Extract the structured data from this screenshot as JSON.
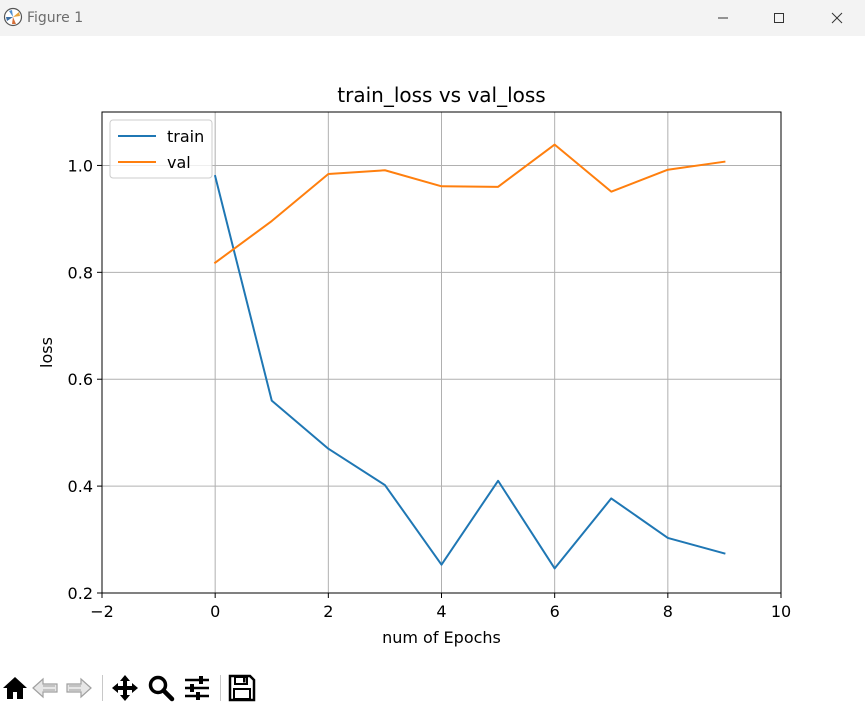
{
  "window": {
    "title": "Figure 1"
  },
  "toolbar": {
    "buttons": [
      {
        "name": "home-button",
        "icon": "home-icon"
      },
      {
        "name": "back-button",
        "icon": "back-arrow-icon"
      },
      {
        "name": "forward-button",
        "icon": "forward-arrow-icon"
      },
      {
        "name": "pan-button",
        "icon": "move-icon"
      },
      {
        "name": "zoom-button",
        "icon": "magnifier-icon"
      },
      {
        "name": "configure-subplots-button",
        "icon": "sliders-icon"
      },
      {
        "name": "save-button",
        "icon": "floppy-disk-icon"
      }
    ]
  },
  "colors": {
    "train": "#1f77b4",
    "val": "#ff7f0e",
    "grid": "#b0b0b0"
  },
  "chart_data": {
    "type": "line",
    "title": "train_loss vs val_loss",
    "xlabel": "num of Epochs",
    "ylabel": "loss",
    "xlim": [
      -2,
      10
    ],
    "ylim": [
      0.2,
      1.1
    ],
    "xticks": [
      -2,
      0,
      2,
      4,
      6,
      8,
      10
    ],
    "xtick_labels": [
      "−2",
      "0",
      "2",
      "4",
      "6",
      "8",
      "10"
    ],
    "yticks": [
      0.2,
      0.4,
      0.6,
      0.8,
      1.0
    ],
    "ytick_labels": [
      "0.2",
      "0.4",
      "0.6",
      "0.8",
      "1.0"
    ],
    "grid": true,
    "legend_position": "top-left",
    "x": [
      0,
      1,
      2,
      3,
      4,
      5,
      6,
      7,
      8,
      9
    ],
    "series": [
      {
        "name": "train",
        "color": "#1f77b4",
        "values": [
          0.98,
          0.56,
          0.47,
          0.402,
          0.253,
          0.41,
          0.246,
          0.377,
          0.303,
          0.274
        ]
      },
      {
        "name": "val",
        "color": "#ff7f0e",
        "values": [
          0.818,
          0.896,
          0.984,
          0.991,
          0.961,
          0.96,
          1.039,
          0.951,
          0.992,
          1.007
        ]
      }
    ]
  }
}
